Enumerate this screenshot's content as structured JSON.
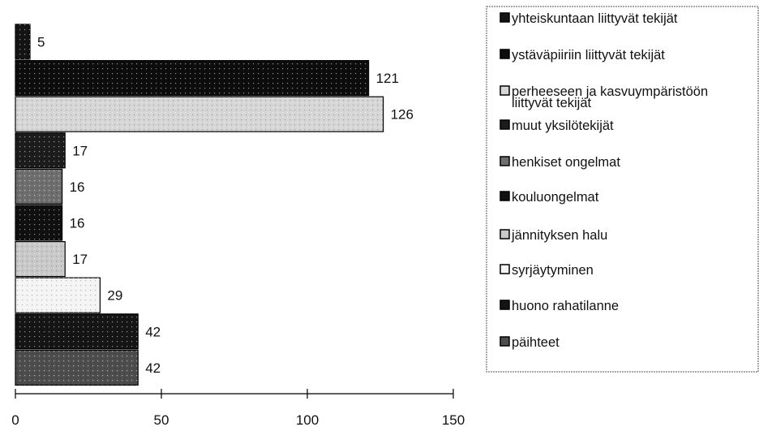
{
  "chart_data": {
    "type": "bar",
    "orientation": "horizontal",
    "categories": [
      "yhteiskuntaan liittyvät tekijät",
      "ystäväpiiriin liittyvät tekijät",
      "perheeseen ja kasvuympäristöön liittyvät tekijät",
      "muut yksilötekijät",
      "henkiset ongelmat",
      "kouluongelmat",
      "jännityksen halu",
      "syrjäytyminen",
      "huono rahatilanne",
      "päihteet"
    ],
    "legend_lines": [
      [
        "yhteiskuntaan liittyvät tekijät"
      ],
      [
        "ystäväpiiriin liittyvät tekijät"
      ],
      [
        "perheeseen ja kasvuympäristöön",
        "liittyvät tekijät"
      ],
      [
        "muut yksilötekijät"
      ],
      [
        "henkiset ongelmat"
      ],
      [
        "kouluongelmat"
      ],
      [
        "jännityksen halu"
      ],
      [
        "syrjäytyminen"
      ],
      [
        "huono rahatilanne"
      ],
      [
        "päihteet"
      ]
    ],
    "values": [
      5,
      121,
      126,
      17,
      16,
      16,
      17,
      29,
      42,
      42
    ],
    "colors": [
      "#141414",
      "#0d0d0d",
      "#d6d6d6",
      "#1c1c1c",
      "#6e6e6e",
      "#101010",
      "#c9c9c9",
      "#f4f4f4",
      "#151515",
      "#4d4d4d"
    ],
    "xlim": [
      0,
      150
    ],
    "xticks": [
      0,
      50,
      100,
      150
    ],
    "title": "",
    "xlabel": "",
    "ylabel": "",
    "grid": false,
    "legend_position": "right"
  }
}
